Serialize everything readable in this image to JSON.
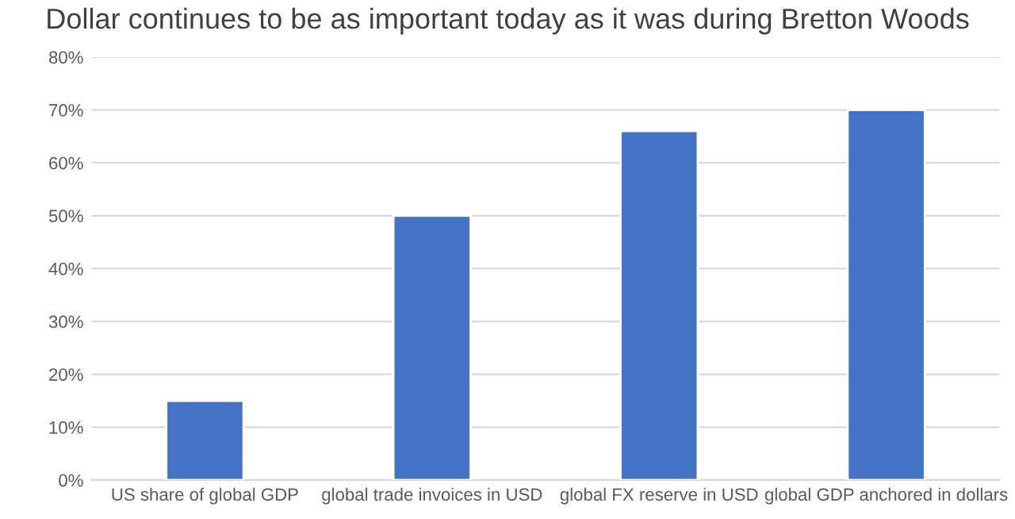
{
  "chart_data": {
    "type": "bar",
    "title": "Dollar continues to be as important today as it was during Bretton Woods",
    "categories": [
      "US share of global GDP",
      "global trade invoices in USD",
      "global FX reserve in USD",
      "global GDP anchored in dollars"
    ],
    "values": [
      15,
      50,
      66,
      70
    ],
    "color": "#4472c4",
    "ylim": [
      0,
      80
    ],
    "yticks": [
      {
        "value": 0,
        "label": "0%"
      },
      {
        "value": 10,
        "label": "10%"
      },
      {
        "value": 20,
        "label": "20%"
      },
      {
        "value": 30,
        "label": "30%"
      },
      {
        "value": 40,
        "label": "40%"
      },
      {
        "value": 50,
        "label": "50%"
      },
      {
        "value": 60,
        "label": "60%"
      },
      {
        "value": 70,
        "label": "70%"
      },
      {
        "value": 80,
        "label": "80%"
      }
    ],
    "grid": "y",
    "legend": false
  }
}
